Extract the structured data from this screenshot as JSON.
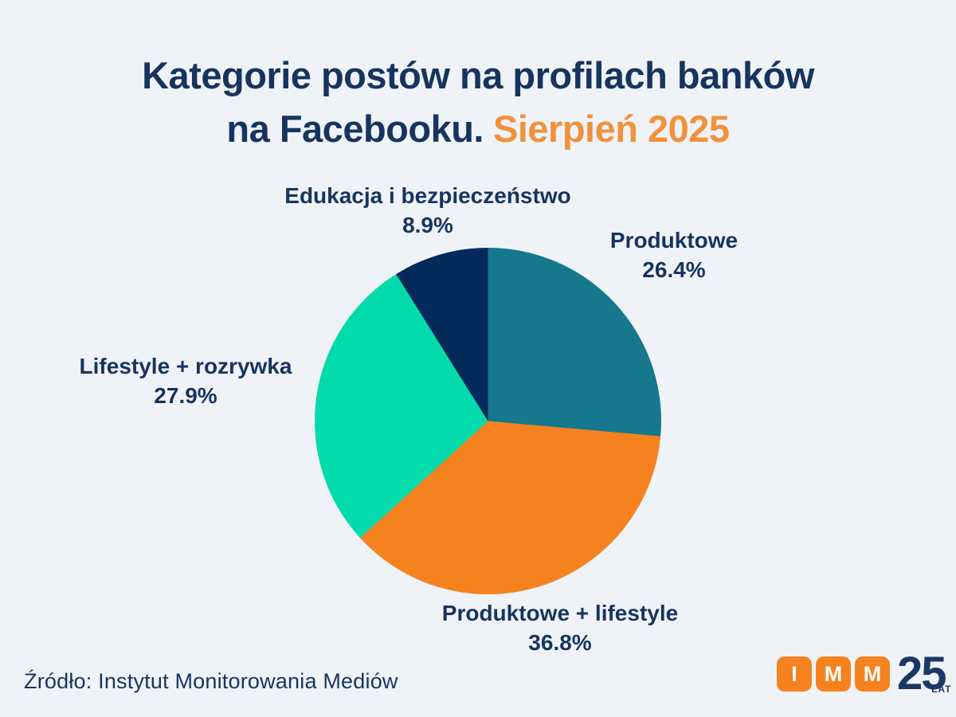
{
  "title": {
    "line1": "Kategorie postów na profilach banków",
    "line2_dark": "na Facebooku.",
    "line2_accent": "Sierpień 2025"
  },
  "colors": {
    "bg": "#EFF3F8",
    "title_text": "#17345F",
    "accent": "#F1913B",
    "label_text": "#17345F",
    "logo_orange": "#F5821F",
    "logo_navy": "#1B3765"
  },
  "chart_data": {
    "type": "pie",
    "title": "Kategorie postów na profilach banków na Facebooku. Sierpień 2025",
    "start_angle_deg": 0,
    "direction": "clockwise",
    "legend_position": "labels-around-pie",
    "slices": [
      {
        "label": "Produktowe",
        "value": 26.4,
        "pct_label": "26.4%",
        "color": "#15788D"
      },
      {
        "label": "Produktowe + lifestyle",
        "value": 36.8,
        "pct_label": "36.8%",
        "color": "#F5821F"
      },
      {
        "label": "Lifestyle + rozrywka",
        "value": 27.9,
        "pct_label": "27.9%",
        "color": "#04DBAD"
      },
      {
        "label": "Edukacja i bezpieczeństwo",
        "value": 8.9,
        "pct_label": "8.9%",
        "color": "#042A5B"
      }
    ]
  },
  "footer": {
    "source": "Źródło: Instytut Monitorowania Mediów"
  },
  "logo": {
    "letters": [
      "I",
      "M",
      "M"
    ],
    "number": "25",
    "suffix": "LAT"
  }
}
